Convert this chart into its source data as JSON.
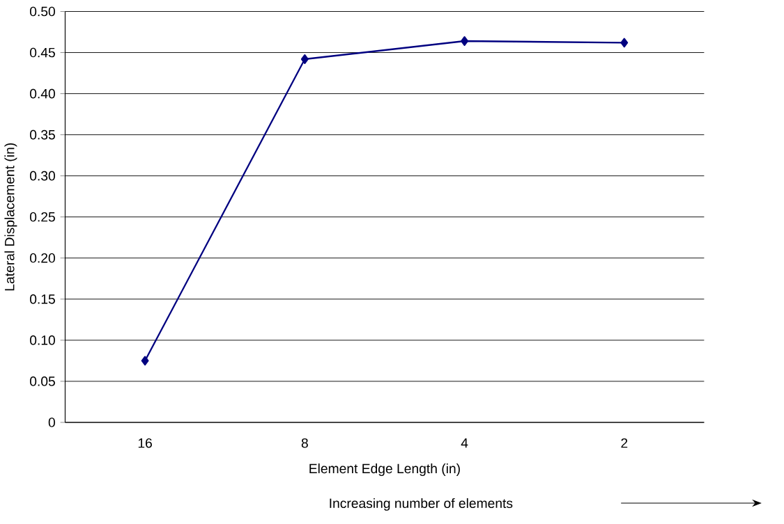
{
  "chart_data": {
    "type": "line",
    "xlabel": "Element Edge Length (in)",
    "ylabel": "Lateral Displacement (in)",
    "categories": [
      "16",
      "8",
      "4",
      "2"
    ],
    "series": [
      {
        "color": "#000080",
        "values": [
          0.075,
          0.442,
          0.464,
          0.462
        ]
      }
    ],
    "ylim": [
      0,
      0.5
    ],
    "yticks": [
      0,
      0.05,
      {
        "value": 0.1,
        "label": "0.10"
      },
      0.15,
      {
        "value": 0.2,
        "label": "0.20"
      },
      0.25,
      {
        "value": 0.3,
        "label": "0.30"
      },
      0.35,
      {
        "value": 0.4,
        "label": "0.40"
      },
      0.45,
      {
        "value": 0.5,
        "label": "0.50"
      }
    ],
    "grid": "y",
    "marker": "diamond",
    "line_style": "solid",
    "annotations": [
      "Increasing number of elements"
    ]
  }
}
